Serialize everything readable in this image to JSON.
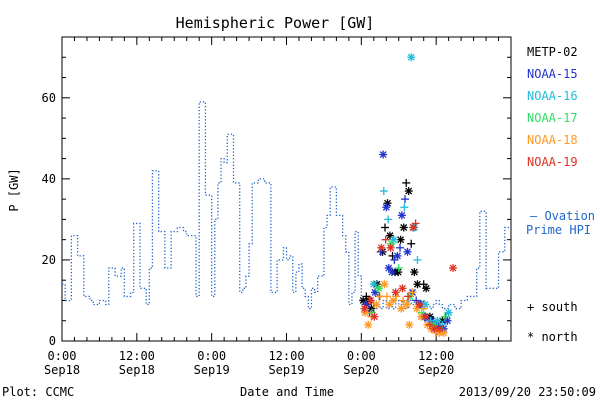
{
  "chart_data": {
    "type": "scatter",
    "title": "Hemispheric Power [GW]",
    "ylabel": "P [GW]",
    "xlabel": "Date and Time",
    "ylim": [
      0,
      75
    ],
    "xlim_hours": [
      0,
      72
    ],
    "yticks": [
      0,
      20,
      40,
      60
    ],
    "xticks": [
      {
        "hour": 0,
        "time": "0:00",
        "date": "Sep18"
      },
      {
        "hour": 12,
        "time": "12:00",
        "date": "Sep18"
      },
      {
        "hour": 24,
        "time": "0:00",
        "date": "Sep19"
      },
      {
        "hour": 36,
        "time": "12:00",
        "date": "Sep19"
      },
      {
        "hour": 48,
        "time": "0:00",
        "date": "Sep20"
      },
      {
        "hour": 60,
        "time": "12:00",
        "date": "Sep20"
      }
    ],
    "footer_left": "Plot: CCMC",
    "footer_right": "2013/09/20 23:50:09",
    "legend": [
      {
        "name": "METP-02",
        "color": "#000000"
      },
      {
        "name": "NOAA-15",
        "color": "#2233cc"
      },
      {
        "name": "NOAA-16",
        "color": "#22bbdd"
      },
      {
        "name": "NOAA-17",
        "color": "#33dd66"
      },
      {
        "name": "NOAA-18",
        "color": "#ff9922"
      },
      {
        "name": "NOAA-19",
        "color": "#dd3322"
      }
    ],
    "ovation_label_line1": "– Ovation",
    "ovation_label_line2": "Prime HPI",
    "marker_legend": [
      {
        "symbol": "+",
        "label": "south"
      },
      {
        "symbol": "*",
        "label": "north"
      }
    ],
    "ovation": {
      "color": "#2266cc",
      "points": [
        [
          0,
          14
        ],
        [
          0.5,
          10
        ],
        [
          1.5,
          26
        ],
        [
          2.5,
          21
        ],
        [
          3.5,
          11
        ],
        [
          4.5,
          10
        ],
        [
          5,
          9
        ],
        [
          6,
          10
        ],
        [
          7,
          9
        ],
        [
          7.5,
          18
        ],
        [
          8.5,
          16
        ],
        [
          9.5,
          18
        ],
        [
          10,
          11
        ],
        [
          11,
          12
        ],
        [
          11.5,
          29
        ],
        [
          12.5,
          13
        ],
        [
          13.5,
          9
        ],
        [
          14,
          18
        ],
        [
          14.5,
          42
        ],
        [
          15.5,
          27
        ],
        [
          16.5,
          18
        ],
        [
          17.5,
          27
        ],
        [
          18.5,
          28
        ],
        [
          19.5,
          27
        ],
        [
          20,
          26
        ],
        [
          21.5,
          11
        ],
        [
          22,
          59
        ],
        [
          23,
          36
        ],
        [
          24,
          11
        ],
        [
          24.5,
          30
        ],
        [
          25,
          39
        ],
        [
          25.5,
          45
        ],
        [
          26,
          44
        ],
        [
          26.5,
          51
        ],
        [
          27.5,
          39
        ],
        [
          28.5,
          12
        ],
        [
          29,
          13
        ],
        [
          29.5,
          16
        ],
        [
          30,
          24
        ],
        [
          30.5,
          39
        ],
        [
          31.5,
          40
        ],
        [
          32.5,
          39
        ],
        [
          33.5,
          12
        ],
        [
          34.5,
          20
        ],
        [
          35.5,
          23
        ],
        [
          36,
          20
        ],
        [
          36.5,
          21
        ],
        [
          37,
          12
        ],
        [
          37.5,
          17
        ],
        [
          38,
          19
        ],
        [
          38.5,
          13
        ],
        [
          39,
          11
        ],
        [
          39.5,
          8
        ],
        [
          40,
          13
        ],
        [
          40.5,
          12
        ],
        [
          41,
          16
        ],
        [
          42,
          28
        ],
        [
          42.5,
          31
        ],
        [
          43,
          38
        ],
        [
          44,
          31
        ],
        [
          45,
          26
        ],
        [
          45.5,
          22
        ],
        [
          46,
          9
        ],
        [
          46.5,
          12
        ],
        [
          47,
          27
        ],
        [
          47.5,
          16
        ],
        [
          48,
          9
        ],
        [
          48.5,
          8
        ],
        [
          49,
          11
        ],
        [
          49.5,
          9
        ],
        [
          50,
          8
        ],
        [
          50.5,
          9
        ],
        [
          51,
          8
        ],
        [
          51.5,
          10
        ],
        [
          52,
          8
        ],
        [
          52.5,
          9
        ],
        [
          53,
          8
        ],
        [
          53.5,
          10
        ],
        [
          54,
          9
        ],
        [
          54.5,
          10
        ],
        [
          55,
          8
        ],
        [
          55.5,
          10
        ],
        [
          56,
          9
        ],
        [
          56.5,
          10
        ],
        [
          57,
          9
        ],
        [
          57.5,
          10
        ],
        [
          58,
          8
        ],
        [
          58.5,
          9
        ],
        [
          59,
          8
        ],
        [
          59.5,
          9
        ],
        [
          60,
          10
        ],
        [
          60.5,
          9
        ],
        [
          61,
          8
        ],
        [
          62,
          9
        ],
        [
          63,
          8
        ],
        [
          64,
          10
        ],
        [
          65,
          11
        ],
        [
          66,
          11
        ],
        [
          66.5,
          18
        ],
        [
          67,
          32
        ],
        [
          68,
          13
        ],
        [
          69,
          13
        ],
        [
          70,
          22
        ],
        [
          71,
          28
        ],
        [
          72,
          28
        ]
      ]
    },
    "series": [
      {
        "name": "METP-02",
        "points": [
          [
            48.3,
            10,
            "*"
          ],
          [
            48.8,
            11,
            "+"
          ],
          [
            49.2,
            10,
            "*"
          ],
          [
            49.6,
            8,
            "*"
          ],
          [
            50.5,
            14,
            "*"
          ],
          [
            50.9,
            11,
            "+"
          ],
          [
            51.4,
            22,
            "*"
          ],
          [
            51.8,
            28,
            "+"
          ],
          [
            52.2,
            34,
            "*"
          ],
          [
            52.6,
            26,
            "*"
          ],
          [
            53.0,
            21,
            "+"
          ],
          [
            53.4,
            17,
            "*"
          ],
          [
            53.9,
            17,
            "*"
          ],
          [
            54.3,
            25,
            "*"
          ],
          [
            54.8,
            28,
            "*"
          ],
          [
            55.2,
            39,
            "+"
          ],
          [
            55.6,
            37,
            "*"
          ],
          [
            56.0,
            24,
            "+"
          ],
          [
            56.5,
            17,
            "*"
          ],
          [
            57.0,
            14,
            "*"
          ],
          [
            58.0,
            14,
            "+"
          ],
          [
            58.4,
            13,
            "*"
          ],
          [
            59.0,
            6,
            "*"
          ],
          [
            59.5,
            5,
            "+"
          ],
          [
            60.0,
            4,
            "*"
          ],
          [
            60.5,
            3,
            "*"
          ],
          [
            61.0,
            5,
            "*"
          ],
          [
            61.5,
            6,
            "+"
          ]
        ]
      },
      {
        "name": "NOAA-15",
        "points": [
          [
            48.8,
            9,
            "*"
          ],
          [
            49.3,
            7,
            "+"
          ],
          [
            50.2,
            12,
            "*"
          ],
          [
            51.1,
            22,
            "+"
          ],
          [
            51.5,
            46,
            "*"
          ],
          [
            52.0,
            33,
            "*"
          ],
          [
            52.4,
            18,
            "*"
          ],
          [
            52.9,
            17,
            "*"
          ],
          [
            53.3,
            20,
            "+"
          ],
          [
            53.8,
            21,
            "*"
          ],
          [
            54.2,
            23,
            "+"
          ],
          [
            54.5,
            31,
            "*"
          ],
          [
            55.0,
            35,
            "+"
          ],
          [
            55.4,
            22,
            "*"
          ],
          [
            56.2,
            12,
            "*"
          ],
          [
            56.8,
            10,
            "+"
          ],
          [
            57.5,
            9,
            "*"
          ],
          [
            58.1,
            6,
            "*"
          ],
          [
            58.7,
            5,
            "+"
          ],
          [
            59.3,
            5,
            "*"
          ],
          [
            59.8,
            4,
            "*"
          ],
          [
            60.4,
            4,
            "+"
          ],
          [
            61.2,
            3,
            "*"
          ],
          [
            61.8,
            5,
            "*"
          ]
        ]
      },
      {
        "name": "NOAA-16",
        "points": [
          [
            50.0,
            14,
            "*"
          ],
          [
            51.6,
            37,
            "+"
          ],
          [
            52.3,
            30,
            "+"
          ],
          [
            53.2,
            25,
            "*"
          ],
          [
            54.9,
            33,
            "+"
          ],
          [
            56.0,
            70,
            "*"
          ],
          [
            56.5,
            28,
            "*"
          ],
          [
            57.0,
            20,
            "+"
          ],
          [
            58.2,
            9,
            "*"
          ],
          [
            59.1,
            5,
            "+"
          ],
          [
            60.2,
            5,
            "*"
          ],
          [
            61.0,
            4,
            "+"
          ],
          [
            62.0,
            7,
            "*"
          ]
        ]
      },
      {
        "name": "NOAA-17",
        "points": [
          [
            49.7,
            7,
            "+"
          ],
          [
            50.8,
            13,
            "*"
          ],
          [
            52.8,
            24,
            "*"
          ],
          [
            54.0,
            18,
            "+"
          ],
          [
            55.8,
            11,
            "*"
          ],
          [
            57.7,
            7,
            "+"
          ],
          [
            59.6,
            4,
            "*"
          ],
          [
            61.4,
            6,
            "+"
          ]
        ]
      },
      {
        "name": "NOAA-18",
        "points": [
          [
            48.6,
            7,
            "*"
          ],
          [
            49.1,
            4,
            "*"
          ],
          [
            49.6,
            6,
            "+"
          ],
          [
            50.4,
            9,
            "*"
          ],
          [
            51.0,
            11,
            "+"
          ],
          [
            51.7,
            14,
            "*"
          ],
          [
            52.1,
            11,
            "+"
          ],
          [
            52.5,
            9,
            "*"
          ],
          [
            53.1,
            10,
            "*"
          ],
          [
            53.6,
            11,
            "+"
          ],
          [
            54.4,
            8,
            "*"
          ],
          [
            54.7,
            10,
            "+"
          ],
          [
            55.3,
            9,
            "*"
          ],
          [
            55.7,
            4,
            "*"
          ],
          [
            56.2,
            12,
            "+"
          ],
          [
            56.9,
            8,
            "*"
          ],
          [
            57.6,
            6,
            "*"
          ],
          [
            58.0,
            8,
            "+"
          ],
          [
            58.6,
            4,
            "*"
          ],
          [
            59.2,
            3,
            "*"
          ],
          [
            59.9,
            2,
            "+"
          ],
          [
            60.5,
            2,
            "*"
          ],
          [
            61.2,
            2,
            "*"
          ]
        ]
      },
      {
        "name": "NOAA-19",
        "points": [
          [
            48.5,
            8,
            "*"
          ],
          [
            49.5,
            10,
            "*"
          ],
          [
            50.1,
            6,
            "*"
          ],
          [
            51.2,
            23,
            "*"
          ],
          [
            51.9,
            25,
            "+"
          ],
          [
            52.7,
            23,
            "*"
          ],
          [
            53.5,
            12,
            "*"
          ],
          [
            54.6,
            13,
            "*"
          ],
          [
            55.5,
            11,
            "+"
          ],
          [
            56.3,
            28,
            "*"
          ],
          [
            56.7,
            29,
            "+"
          ],
          [
            57.3,
            9,
            "*"
          ],
          [
            58.3,
            6,
            "*"
          ],
          [
            59.0,
            4,
            "+"
          ],
          [
            59.7,
            3,
            "*"
          ],
          [
            60.6,
            3,
            "*"
          ],
          [
            62.7,
            18,
            "*"
          ]
        ]
      }
    ]
  }
}
